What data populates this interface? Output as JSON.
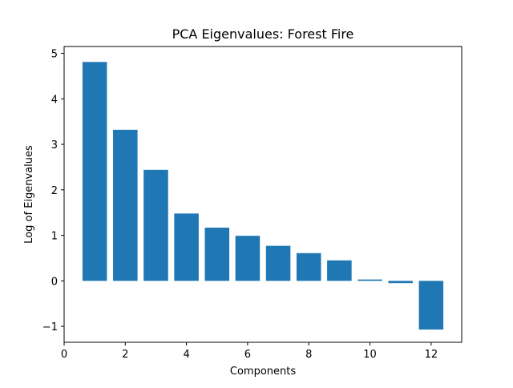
{
  "chart_data": {
    "type": "bar",
    "title": "PCA Eigenvalues: Forest Fire",
    "xlabel": "Components",
    "ylabel": "Log of Eigenvalues",
    "x": [
      1,
      2,
      3,
      4,
      5,
      6,
      7,
      8,
      9,
      10,
      11,
      12
    ],
    "values": [
      4.81,
      3.32,
      2.44,
      1.48,
      1.17,
      0.99,
      0.77,
      0.61,
      0.45,
      0.03,
      -0.05,
      -1.07
    ],
    "xlim": [
      0,
      13
    ],
    "ylim": [
      -1.35,
      5.15
    ],
    "xticks": [
      0,
      2,
      4,
      6,
      8,
      10,
      12
    ],
    "yticks": [
      -1,
      0,
      1,
      2,
      3,
      4,
      5
    ],
    "xtick_labels": [
      "0",
      "2",
      "4",
      "6",
      "8",
      "10",
      "12"
    ],
    "ytick_labels": [
      "−1",
      "0",
      "1",
      "2",
      "3",
      "4",
      "5"
    ],
    "bar_color": "#1f77b4",
    "grid": false,
    "legend": "none"
  }
}
